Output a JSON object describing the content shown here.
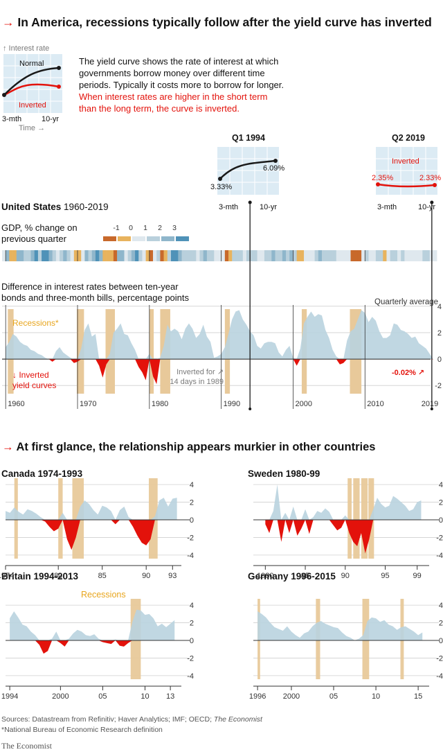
{
  "headline1": "In America, recessions typically follow after the yield curve has inverted",
  "explainer": {
    "axis_y": "↑ Interest rate",
    "normal_label": "Normal",
    "inverted_label": "Inverted",
    "x_start": "3-mth",
    "x_end": "10-yr",
    "axis_x": "Time →",
    "text_plain": "The yield curve shows the rate of interest at which governments borrow money over different time periods. Typically it costs more to borrow for longer.",
    "text_red": "When interest rates are higher in the short term than the long term, the curve is inverted."
  },
  "q1_1994": {
    "title": "Q1 1994",
    "start": "3.33%",
    "end": "6.09%",
    "x_start": "3-mth",
    "x_end": "10-yr",
    "start_value": 3.33,
    "end_value": 6.09
  },
  "q2_2019": {
    "title": "Q2 2019",
    "label": "Inverted",
    "start": "2.35%",
    "end": "2.33%",
    "x_start": "3-mth",
    "x_end": "10-yr",
    "start_value": 2.35,
    "end_value": 2.33
  },
  "us": {
    "title_bold": "United States",
    "title_years": "1960-2019",
    "gdp_label_line1": "GDP, % change on",
    "gdp_label_line2": "previous quarter",
    "gdp_scale": [
      "-1",
      "0",
      "1",
      "2",
      "3"
    ],
    "gdp_colors": [
      "#c8692b",
      "#e8b35e",
      "#dfe8ee",
      "#b9d0dc",
      "#8fb6cb",
      "#4f92b8"
    ],
    "spread_title_line1": "Difference in interest rates between ten-year",
    "spread_title_line2": "bonds and three-month bills, percentage points",
    "quarterly_average": "Quarterly average",
    "recessions_label": "Recessions*",
    "inverted_label_line1": "↓ Inverted",
    "inverted_label_line2": "yield curves",
    "note1989_line1": "Inverted for ↗",
    "note1989_line2": "14 days in 1989",
    "latest_label": "-0.02% ↗"
  },
  "headline2": "At first glance, the relationship appears murkier in other countries",
  "country_titles": {
    "canada": "Canada 1974-1993",
    "sweden": "Sweden 1980-99",
    "britain": "Britain 1994-2013",
    "germany": "Germany 1996-2015"
  },
  "recessions_small_label": "Recessions",
  "sources": "Sources: Datastream from Refinitiv; Haver Analytics; IMF; OECD;",
  "sources_italic": "The Economist",
  "footnote": "*National Bureau of Economic Research definition",
  "brand": "The Economist",
  "colors": {
    "accent": "#e3120b",
    "area": "#b9d3df",
    "recession": "#e8c99a",
    "recession_label": "#e8a51c",
    "curve": "#1a1a1a"
  },
  "chart_data": [
    {
      "id": "us",
      "type": "area",
      "xlabel": "",
      "ylabel": "",
      "xlim": [
        1959.5,
        2019.7
      ],
      "ylim": [
        -2.2,
        4.2
      ],
      "y_ticks": [
        "4",
        "2",
        "0",
        "-2"
      ],
      "x_ticks": [
        "1960",
        "1970",
        "1980",
        "1990",
        "2000",
        "2010",
        "2019"
      ],
      "recessions": [
        [
          1960.3,
          1961.1
        ],
        [
          1969.9,
          1970.9
        ],
        [
          1973.9,
          1975.2
        ],
        [
          1980.0,
          1980.6
        ],
        [
          1981.5,
          1982.9
        ],
        [
          1990.5,
          1991.2
        ],
        [
          2001.2,
          2001.9
        ],
        [
          2007.9,
          2009.5
        ]
      ],
      "x": [
        1960,
        1960.5,
        1961,
        1961.5,
        1962,
        1962.5,
        1963,
        1963.5,
        1964,
        1964.5,
        1965,
        1965.5,
        1966,
        1966.5,
        1967,
        1967.5,
        1968,
        1968.5,
        1969,
        1969.5,
        1970,
        1970.5,
        1971,
        1971.5,
        1972,
        1972.5,
        1973,
        1973.5,
        1974,
        1974.5,
        1975,
        1975.5,
        1976,
        1976.5,
        1977,
        1977.5,
        1978,
        1978.5,
        1979,
        1979.5,
        1980,
        1980.5,
        1981,
        1981.5,
        1982,
        1982.5,
        1983,
        1983.5,
        1984,
        1984.5,
        1985,
        1985.5,
        1986,
        1986.5,
        1987,
        1987.5,
        1988,
        1988.5,
        1989,
        1989.5,
        1990,
        1990.5,
        1991,
        1991.5,
        1992,
        1992.5,
        1993,
        1993.5,
        1994,
        1994.5,
        1995,
        1995.5,
        1996,
        1996.5,
        1997,
        1997.5,
        1998,
        1998.5,
        1999,
        1999.5,
        2000,
        2000.5,
        2001,
        2001.5,
        2002,
        2002.5,
        2003,
        2003.5,
        2004,
        2004.5,
        2005,
        2005.5,
        2006,
        2006.5,
        2007,
        2007.5,
        2008,
        2008.5,
        2009,
        2009.5,
        2010,
        2010.5,
        2011,
        2011.5,
        2012,
        2012.5,
        2013,
        2013.5,
        2014,
        2014.5,
        2015,
        2015.5,
        2016,
        2016.5,
        2017,
        2017.5,
        2018,
        2018.5,
        2019,
        2019.5
      ],
      "y": [
        0.9,
        1.3,
        1.9,
        1.7,
        1.3,
        1.1,
        1.0,
        0.7,
        0.6,
        0.4,
        0.3,
        0.1,
        0.0,
        -0.2,
        0.6,
        0.9,
        0.5,
        0.3,
        0.1,
        -0.3,
        -0.2,
        0.8,
        2.2,
        2.7,
        1.7,
        1.9,
        -0.5,
        -1.4,
        -0.4,
        0.4,
        2.0,
        2.3,
        2.7,
        1.9,
        1.8,
        1.2,
        0.7,
        -0.6,
        -1.0,
        -1.6,
        0.4,
        -1.3,
        -1.9,
        0.1,
        1.0,
        2.6,
        2.1,
        2.3,
        2.1,
        1.5,
        2.3,
        2.7,
        2.3,
        1.6,
        1.9,
        2.6,
        1.7,
        1.3,
        0.1,
        0.2,
        0.4,
        0.9,
        1.9,
        3.0,
        3.6,
        3.7,
        3.0,
        2.6,
        2.1,
        1.8,
        1.0,
        0.8,
        1.2,
        1.3,
        1.3,
        1.2,
        0.5,
        0.2,
        0.7,
        1.0,
        0.1,
        -0.5,
        0.8,
        2.7,
        3.2,
        3.6,
        3.2,
        3.4,
        3.3,
        2.2,
        1.6,
        0.7,
        0.2,
        -0.4,
        -0.3,
        1.4,
        2.1,
        2.3,
        3.0,
        3.7,
        3.5,
        2.8,
        3.2,
        2.9,
        2.1,
        1.6,
        1.6,
        1.8,
        2.7,
        2.6,
        2.2,
        2.1,
        1.9,
        1.6,
        1.7,
        1.2,
        1.0,
        0.8,
        0.4,
        -0.02
      ]
    },
    {
      "id": "canada",
      "type": "area",
      "xlim": [
        1974,
        1994
      ],
      "ylim": [
        -4.4,
        4.4
      ],
      "y_ticks": [
        "4",
        "2",
        "0",
        "-2",
        "-4"
      ],
      "x_ticks": [
        "1974",
        "80",
        "85",
        "90",
        "93"
      ],
      "recessions": [
        [
          1975.0,
          1975.4
        ],
        [
          1980.0,
          1980.5
        ],
        [
          1981.6,
          1982.9
        ],
        [
          1990.3,
          1991.3
        ]
      ],
      "x": [
        1974,
        1974.5,
        1975,
        1975.5,
        1976,
        1976.5,
        1977,
        1977.5,
        1978,
        1978.5,
        1979,
        1979.5,
        1980,
        1980.5,
        1981,
        1981.5,
        1982,
        1982.5,
        1983,
        1983.5,
        1984,
        1984.5,
        1985,
        1985.5,
        1986,
        1986.5,
        1987,
        1987.5,
        1988,
        1988.5,
        1989,
        1989.5,
        1990,
        1990.5,
        1991,
        1991.5,
        1992,
        1992.5,
        1993,
        1993.5
      ],
      "y": [
        1.0,
        0.8,
        1.4,
        0.9,
        0.6,
        1.2,
        1.0,
        0.7,
        0.3,
        -0.2,
        -0.8,
        -1.3,
        -1.0,
        0.8,
        -2.2,
        -3.4,
        -2.0,
        1.5,
        2.2,
        1.8,
        1.1,
        0.6,
        1.6,
        1.4,
        1.0,
        -0.5,
        1.1,
        1.5,
        0.3,
        -0.8,
        -1.8,
        -2.6,
        -2.9,
        -2.2,
        0.4,
        2.2,
        2.5,
        1.5,
        2.4,
        2.5
      ]
    },
    {
      "id": "sweden",
      "type": "area",
      "xlim": [
        1978.5,
        2000.5
      ],
      "ylim": [
        -4.4,
        4.4
      ],
      "y_ticks": [
        "4",
        "2",
        "0",
        "-2",
        "-4"
      ],
      "x_ticks": [
        "1980",
        "85",
        "90",
        "95",
        "99"
      ],
      "recessions": [
        [
          1990.3,
          1990.8
        ],
        [
          1991.0,
          1991.8
        ],
        [
          1992.0,
          1992.8
        ],
        [
          1992.9,
          1993.6
        ]
      ],
      "x": [
        1980,
        1980.5,
        1981,
        1981.5,
        1982,
        1982.5,
        1983,
        1983.5,
        1984,
        1984.5,
        1985,
        1985.5,
        1986,
        1986.5,
        1987,
        1987.5,
        1988,
        1988.5,
        1989,
        1989.5,
        1990,
        1990.5,
        1991,
        1991.5,
        1992,
        1992.5,
        1993,
        1993.5,
        1994,
        1994.5,
        1995,
        1995.5,
        1996,
        1996.5,
        1997,
        1997.5,
        1998,
        1998.5,
        1999,
        1999.5
      ],
      "y": [
        -0.5,
        -1.5,
        1.0,
        4.0,
        -2.5,
        0.8,
        -1.5,
        1.5,
        -1.8,
        -1.0,
        1.2,
        -1.6,
        0.3,
        1.0,
        0.8,
        1.3,
        0.9,
        -0.6,
        -1.2,
        -0.9,
        0.5,
        -1.5,
        -2.5,
        -3.0,
        -1.5,
        -3.8,
        -2.2,
        1.2,
        2.5,
        1.8,
        1.4,
        1.6,
        2.7,
        2.4,
        2.0,
        1.6,
        1.0,
        1.2,
        2.0,
        2.2
      ]
    },
    {
      "id": "britain",
      "type": "area",
      "xlim": [
        1993.5,
        2014.3
      ],
      "ylim": [
        -4.4,
        4.4
      ],
      "y_ticks": [
        "4",
        "2",
        "0",
        "-2",
        "-4"
      ],
      "x_ticks": [
        "1994",
        "2000",
        "05",
        "10",
        "13"
      ],
      "recessions": [
        [
          2008.3,
          2009.5
        ]
      ],
      "x": [
        1994,
        1994.5,
        1995,
        1995.5,
        1996,
        1996.5,
        1997,
        1997.5,
        1998,
        1998.5,
        1999,
        1999.5,
        2000,
        2000.5,
        2001,
        2001.5,
        2002,
        2002.5,
        2003,
        2003.5,
        2004,
        2004.5,
        2005,
        2005.5,
        2006,
        2006.5,
        2007,
        2007.5,
        2008,
        2008.5,
        2009,
        2009.5,
        2010,
        2010.5,
        2011,
        2011.5,
        2012,
        2012.5,
        2013,
        2013.5
      ],
      "y": [
        2.5,
        3.3,
        2.6,
        1.8,
        1.6,
        1.0,
        0.6,
        -0.5,
        -1.5,
        -1.2,
        0.2,
        1.0,
        -0.3,
        -0.7,
        0.2,
        0.8,
        1.2,
        1.0,
        0.6,
        0.5,
        0.7,
        0.2,
        -0.2,
        -0.3,
        -0.4,
        0.1,
        -0.6,
        -0.7,
        -0.3,
        2.1,
        3.5,
        3.4,
        2.9,
        3.0,
        2.5,
        1.6,
        1.9,
        1.5,
        1.9,
        2.3
      ]
    },
    {
      "id": "germany",
      "type": "area",
      "xlim": [
        1995.5,
        2016.3
      ],
      "ylim": [
        -4.4,
        4.4
      ],
      "y_ticks": [
        "4",
        "2",
        "0",
        "-2",
        "-4"
      ],
      "x_ticks": [
        "1996",
        "2000",
        "05",
        "10",
        "15"
      ],
      "recessions": [
        [
          1996.0,
          1996.3
        ],
        [
          2002.9,
          2003.4
        ],
        [
          2008.4,
          2009.2
        ],
        [
          2012.9,
          2013.3
        ]
      ],
      "x": [
        1996,
        1996.5,
        1997,
        1997.5,
        1998,
        1998.5,
        1999,
        1999.5,
        2000,
        2000.5,
        2001,
        2001.5,
        2002,
        2002.5,
        2003,
        2003.5,
        2004,
        2004.5,
        2005,
        2005.5,
        2006,
        2006.5,
        2007,
        2007.5,
        2008,
        2008.5,
        2009,
        2009.5,
        2010,
        2010.5,
        2011,
        2011.5,
        2012,
        2012.5,
        2013,
        2013.5,
        2014,
        2014.5,
        2015,
        2015.5
      ],
      "y": [
        3.3,
        3.0,
        2.6,
        2.0,
        1.5,
        1.3,
        1.1,
        1.6,
        1.0,
        0.6,
        0.3,
        0.8,
        1.0,
        1.6,
        2.0,
        2.2,
        1.9,
        1.7,
        1.5,
        1.4,
        0.9,
        0.5,
        0.3,
        0.0,
        0.2,
        0.6,
        2.2,
        2.6,
        2.5,
        2.1,
        2.3,
        1.8,
        1.6,
        1.2,
        1.5,
        1.6,
        1.3,
        1.0,
        0.6,
        0.9
      ]
    }
  ],
  "gdp_band": {
    "xlim": [
      1959.5,
      2019.7
    ],
    "x": [
      1960,
      1960.5,
      1961,
      1961.5,
      1962,
      1962.5,
      1963,
      1963.5,
      1964,
      1964.5,
      1965,
      1965.5,
      1966,
      1966.5,
      1967,
      1967.5,
      1968,
      1968.5,
      1969,
      1969.5,
      1970,
      1970.5,
      1971,
      1971.5,
      1972,
      1972.5,
      1973,
      1973.5,
      1974,
      1974.5,
      1975,
      1975.5,
      1976,
      1976.5,
      1977,
      1977.5,
      1978,
      1978.5,
      1979,
      1979.5,
      1980,
      1980.5,
      1981,
      1981.5,
      1982,
      1982.5,
      1983,
      1983.5,
      1984,
      1984.5,
      1985,
      1985.5,
      1986,
      1986.5,
      1987,
      1987.5,
      1988,
      1988.5,
      1989,
      1989.5,
      1990,
      1990.5,
      1991,
      1991.5,
      1992,
      1992.5,
      1993,
      1993.5,
      1994,
      1994.5,
      1995,
      1995.5,
      1996,
      1996.5,
      1997,
      1997.5,
      1998,
      1998.5,
      1999,
      1999.5,
      2000,
      2000.5,
      2001,
      2001.5,
      2002,
      2002.5,
      2003,
      2003.5,
      2004,
      2004.5,
      2005,
      2005.5,
      2006,
      2006.5,
      2007,
      2007.5,
      2008,
      2008.5,
      2009,
      2009.5,
      2010,
      2010.5,
      2011,
      2011.5,
      2012,
      2012.5,
      2013,
      2013.5,
      2014,
      2014.5,
      2015,
      2015.5,
      2016,
      2016.5,
      2017,
      2017.5,
      2018,
      2018.5,
      2019,
      2019.5
    ],
    "values": [
      1.5,
      -0.5,
      0.0,
      1.8,
      1.6,
      1.0,
      1.2,
      1.4,
      2.0,
      1.2,
      2.2,
      2.0,
      1.6,
      0.8,
      0.6,
      1.2,
      1.8,
      1.0,
      0.6,
      0.2,
      -0.3,
      0.5,
      1.5,
      1.0,
      1.8,
      2.4,
      1.4,
      0.2,
      -0.5,
      -0.3,
      -0.8,
      1.8,
      1.4,
      0.6,
      1.2,
      1.6,
      2.5,
      1.0,
      0.4,
      0.2,
      -1.2,
      0.6,
      1.2,
      -0.8,
      -0.2,
      1.0,
      2.0,
      2.2,
      1.5,
      0.8,
      1.0,
      0.8,
      0.9,
      0.4,
      1.1,
      1.4,
      0.8,
      0.8,
      0.7,
      0.4,
      0.5,
      -0.8,
      0.2,
      0.9,
      1.0,
      0.9,
      0.6,
      1.2,
      0.9,
      0.8,
      0.5,
      0.7,
      1.2,
      1.0,
      1.3,
      1.1,
      1.2,
      1.4,
      1.2,
      1.5,
      0.9,
      0.2,
      -0.2,
      0.3,
      0.6,
      0.5,
      0.9,
      1.6,
      0.8,
      0.9,
      1.0,
      0.8,
      0.7,
      0.3,
      0.6,
      0.5,
      -0.6,
      -1.2,
      -0.7,
      0.6,
      0.8,
      0.6,
      0.3,
      1.0,
      0.8,
      0.1,
      0.5,
      0.9,
      1.1,
      0.5,
      0.8,
      0.5,
      0.6,
      0.7,
      0.6,
      0.7,
      0.8,
      0.9,
      0.6,
      0.5
    ]
  }
}
